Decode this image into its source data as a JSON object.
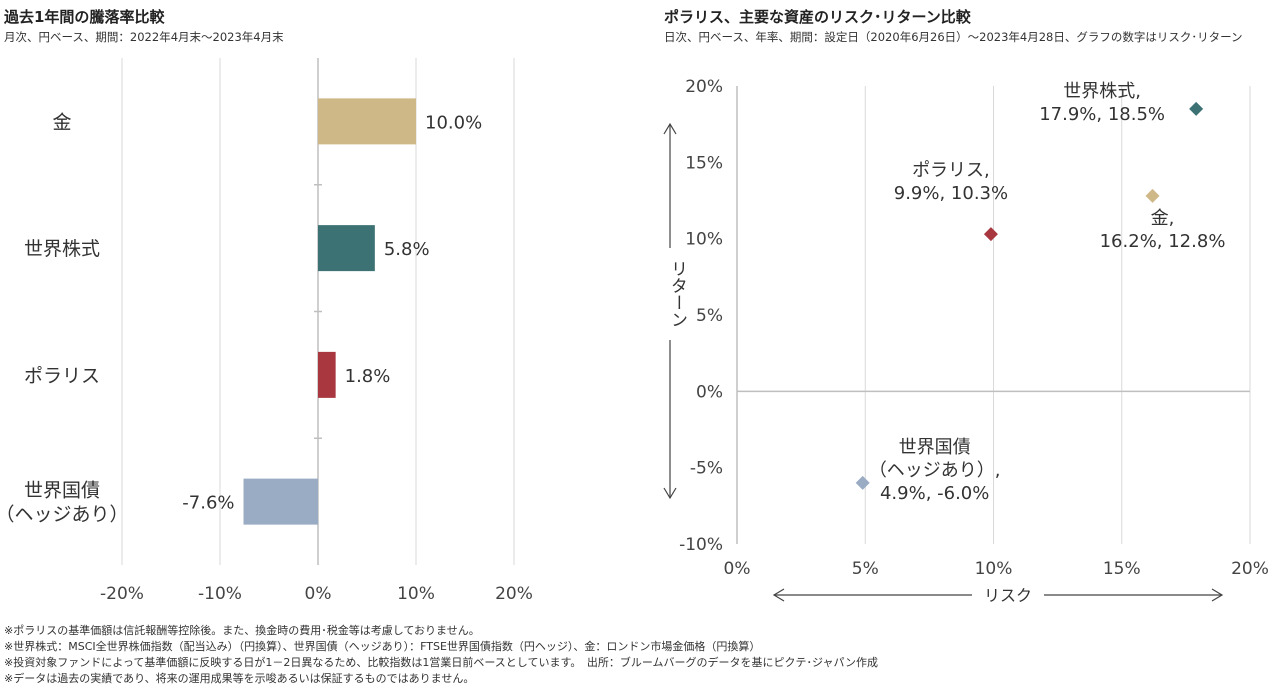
{
  "left_panel": {
    "title": "過去1年間の騰落率比較",
    "subtitle": "月次、円ベース、期間：2022年4月末～2023年4月末"
  },
  "right_panel": {
    "title": "ポラリス、主要な資産のリスク･リターン比較",
    "subtitle": "日次、円ベース、年率、期間：設定日（2020年6月26日）～2023年4月28日、グラフの数字はリスク･リターン"
  },
  "notes": [
    "※ポラリスの基準価額は信託報酬等控除後。また、換金時の費用･税金等は考慮しておりません。",
    "※世界株式：MSCI全世界株価指数（配当込み）（円換算）、世界国債（ヘッジあり）：FTSE世界国債指数（円ヘッジ）、金：ロンドン市場金価格（円換算）",
    "※投資対象ファンドによって基準価額に反映する日が1－2日異なるため、比較指数は1営業日前ベースとしています。　出所：ブルームバーグのデータを基にピクテ･ジャパン作成",
    "※データは過去の実績であり、将来の運用成果等を示唆あるいは保証するものではありません。"
  ],
  "chart_data": [
    {
      "type": "bar",
      "orientation": "horizontal",
      "categories": [
        "金",
        "世界株式",
        "ポラリス",
        "世界国債（ヘッジあり）"
      ],
      "category_lines": [
        [
          "金"
        ],
        [
          "世界株式"
        ],
        [
          "ポラリス"
        ],
        [
          "世界国債",
          "（ヘッジあり）"
        ]
      ],
      "values": [
        10.0,
        5.8,
        1.8,
        -7.6
      ],
      "value_labels": [
        "10.0%",
        "5.8%",
        "1.8%",
        "-7.6%"
      ],
      "colors": [
        "#cfb888",
        "#3d7275",
        "#a8373f",
        "#9aabc4"
      ],
      "xlim": [
        -20,
        20
      ],
      "xticks": [
        -20,
        -10,
        0,
        10,
        20
      ],
      "xtick_labels": [
        "-20%",
        "-10%",
        "0%",
        "10%",
        "20%"
      ],
      "grid": true
    },
    {
      "type": "scatter",
      "x_label": "リスク",
      "y_label": "リターン",
      "xlim": [
        0,
        20
      ],
      "ylim": [
        -10,
        20
      ],
      "xticks": [
        0,
        5,
        10,
        15,
        20
      ],
      "xtick_labels": [
        "0%",
        "5%",
        "10%",
        "15%",
        "20%"
      ],
      "yticks": [
        -10,
        -5,
        0,
        5,
        10,
        15,
        20
      ],
      "ytick_labels": [
        "-10%",
        "-5%",
        "0%",
        "5%",
        "10%",
        "15%",
        "20%"
      ],
      "grid": true,
      "points": [
        {
          "label_lines": [
            "世界株式,",
            "17.9%, 18.5%"
          ],
          "x": 17.9,
          "y": 18.5,
          "color": "#3d7275"
        },
        {
          "label_lines": [
            "ポラリス,",
            "9.9%, 10.3%"
          ],
          "x": 9.9,
          "y": 10.3,
          "color": "#a8373f"
        },
        {
          "label_lines": [
            "金,",
            "16.2%, 12.8%"
          ],
          "x": 16.2,
          "y": 12.8,
          "color": "#cfb888"
        },
        {
          "label_lines": [
            "世界国債",
            "（ヘッジあり）,",
            "4.9%, -6.0%"
          ],
          "x": 4.9,
          "y": -6.0,
          "color": "#9aabc4"
        }
      ]
    }
  ]
}
